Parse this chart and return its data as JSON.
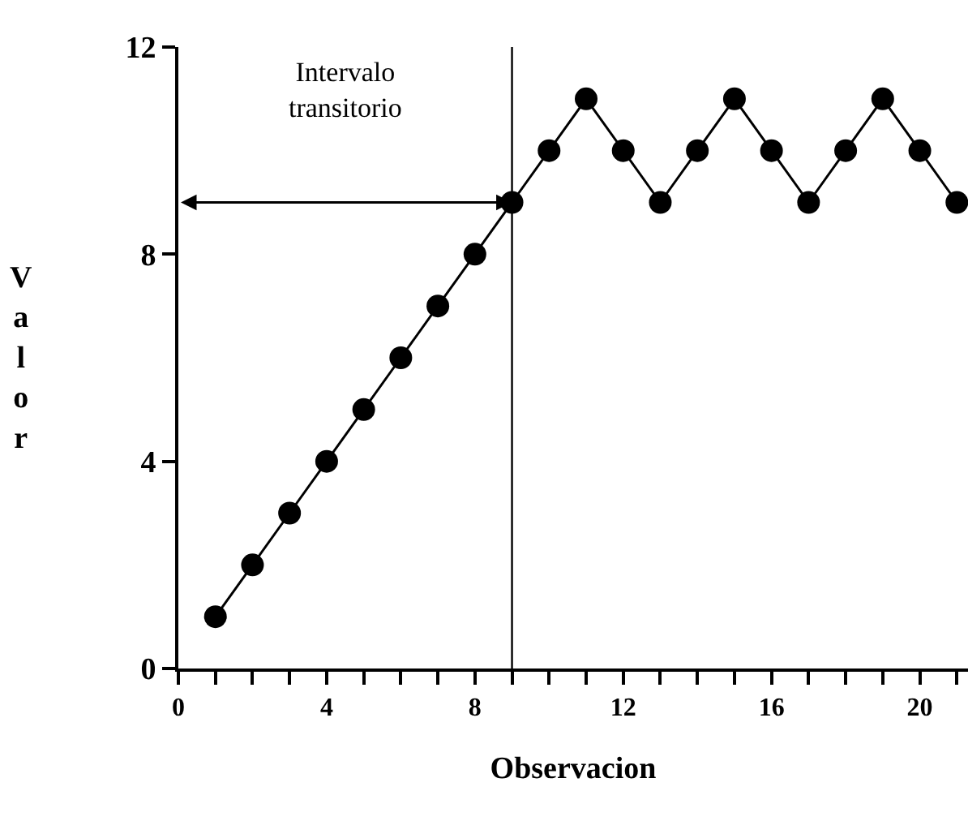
{
  "chart_data": {
    "type": "line",
    "xlabel": "Observacion",
    "ylabel": "Valor",
    "x": [
      1,
      2,
      3,
      4,
      5,
      6,
      7,
      8,
      9,
      10,
      11,
      12,
      13,
      14,
      15,
      16,
      17,
      18,
      19,
      20,
      21
    ],
    "series": [
      {
        "color": "#000000",
        "values": [
          1,
          2,
          3,
          4,
          5,
          6,
          7,
          8,
          9,
          10,
          11,
          10,
          9,
          10,
          11,
          10,
          9,
          10,
          11,
          10,
          9
        ]
      }
    ],
    "xlim": [
      0,
      21.3
    ],
    "xticks": [
      0,
      {
        "value": 1,
        "label": null
      },
      {
        "value": 2,
        "label": null
      },
      {
        "value": 3,
        "label": null
      },
      4,
      {
        "value": 5,
        "label": null
      },
      {
        "value": 6,
        "label": null
      },
      {
        "value": 7,
        "label": null
      },
      8,
      {
        "value": 9,
        "label": null
      },
      {
        "value": 10,
        "label": null
      },
      {
        "value": 11,
        "label": null
      },
      12,
      {
        "value": 13,
        "label": null
      },
      {
        "value": 14,
        "label": null
      },
      {
        "value": 15,
        "label": null
      },
      16,
      {
        "value": 17,
        "label": null
      },
      {
        "value": 18,
        "label": null
      },
      {
        "value": 19,
        "label": null
      },
      20,
      {
        "value": 21,
        "label": null
      }
    ],
    "ylim": [
      0,
      12
    ],
    "yticks": [
      0,
      4,
      8,
      12
    ],
    "marker": "circle",
    "line_style": "solid",
    "ref_lines": [
      {
        "axis": "x",
        "value": 9,
        "color": "#000000"
      }
    ],
    "annotations": [
      "Intervalo transitorio"
    ]
  }
}
